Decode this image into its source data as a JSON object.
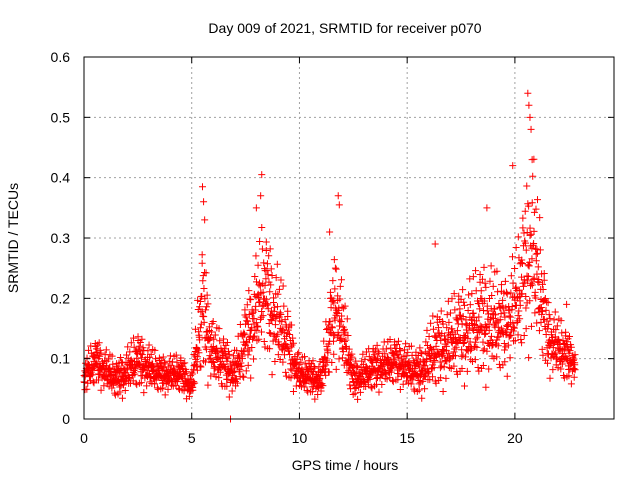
{
  "chart_data": {
    "type": "scatter",
    "title": "Day 009 of 2021, SRMTID for receiver p070",
    "xlabel": "GPS time / hours",
    "ylabel": "SRMTID / TECUs",
    "xlim": [
      0,
      24.6
    ],
    "ylim": [
      0,
      0.6
    ],
    "xticks": [
      0,
      5,
      10,
      15,
      20
    ],
    "xtick_labels": [
      "0",
      "5",
      "10",
      "15",
      "20"
    ],
    "yticks": [
      0,
      0.1,
      0.2,
      0.3,
      0.4,
      0.5,
      0.6
    ],
    "ytick_labels": [
      "0",
      "0.1",
      "0.2",
      "0.3",
      "0.4",
      "0.5",
      "0.6"
    ],
    "grid": true,
    "marker": "+",
    "color": "#ff0000",
    "x_range_of_points": [
      0,
      22.8
    ],
    "envelope": [
      {
        "x": 0.0,
        "base": 0.07,
        "spread": 0.04
      },
      {
        "x": 0.6,
        "base": 0.09,
        "spread": 0.05
      },
      {
        "x": 1.5,
        "base": 0.06,
        "spread": 0.04
      },
      {
        "x": 2.5,
        "base": 0.09,
        "spread": 0.06
      },
      {
        "x": 3.5,
        "base": 0.07,
        "spread": 0.04
      },
      {
        "x": 4.5,
        "base": 0.07,
        "spread": 0.04
      },
      {
        "x": 5.0,
        "base": 0.05,
        "spread": 0.03
      },
      {
        "x": 5.5,
        "base": 0.17,
        "spread": 0.14
      },
      {
        "x": 6.0,
        "base": 0.1,
        "spread": 0.07
      },
      {
        "x": 7.0,
        "base": 0.07,
        "spread": 0.05
      },
      {
        "x": 8.3,
        "base": 0.2,
        "spread": 0.14
      },
      {
        "x": 9.0,
        "base": 0.15,
        "spread": 0.12
      },
      {
        "x": 10.0,
        "base": 0.07,
        "spread": 0.04
      },
      {
        "x": 11.0,
        "base": 0.06,
        "spread": 0.04
      },
      {
        "x": 11.7,
        "base": 0.18,
        "spread": 0.13
      },
      {
        "x": 12.5,
        "base": 0.06,
        "spread": 0.04
      },
      {
        "x": 13.5,
        "base": 0.08,
        "spread": 0.05
      },
      {
        "x": 14.5,
        "base": 0.09,
        "spread": 0.05
      },
      {
        "x": 15.5,
        "base": 0.07,
        "spread": 0.05
      },
      {
        "x": 16.2,
        "base": 0.1,
        "spread": 0.08
      },
      {
        "x": 17.5,
        "base": 0.13,
        "spread": 0.1
      },
      {
        "x": 18.7,
        "base": 0.15,
        "spread": 0.13
      },
      {
        "x": 19.5,
        "base": 0.14,
        "spread": 0.1
      },
      {
        "x": 20.2,
        "base": 0.19,
        "spread": 0.13
      },
      {
        "x": 20.8,
        "base": 0.27,
        "spread": 0.22
      },
      {
        "x": 21.5,
        "base": 0.13,
        "spread": 0.08
      },
      {
        "x": 22.3,
        "base": 0.1,
        "spread": 0.06
      },
      {
        "x": 22.8,
        "base": 0.09,
        "spread": 0.04
      }
    ],
    "notable_points": [
      {
        "x": 5.5,
        "y": 0.385
      },
      {
        "x": 5.55,
        "y": 0.36
      },
      {
        "x": 5.6,
        "y": 0.33
      },
      {
        "x": 8.25,
        "y": 0.405
      },
      {
        "x": 8.2,
        "y": 0.37
      },
      {
        "x": 8.0,
        "y": 0.35
      },
      {
        "x": 11.8,
        "y": 0.37
      },
      {
        "x": 11.85,
        "y": 0.355
      },
      {
        "x": 11.4,
        "y": 0.31
      },
      {
        "x": 16.3,
        "y": 0.29
      },
      {
        "x": 18.7,
        "y": 0.35
      },
      {
        "x": 19.9,
        "y": 0.42
      },
      {
        "x": 20.6,
        "y": 0.54
      },
      {
        "x": 20.65,
        "y": 0.52
      },
      {
        "x": 20.7,
        "y": 0.5
      },
      {
        "x": 20.75,
        "y": 0.48
      },
      {
        "x": 20.8,
        "y": 0.43
      },
      {
        "x": 22.4,
        "y": 0.19
      },
      {
        "x": 6.8,
        "y": 0.0
      }
    ]
  }
}
